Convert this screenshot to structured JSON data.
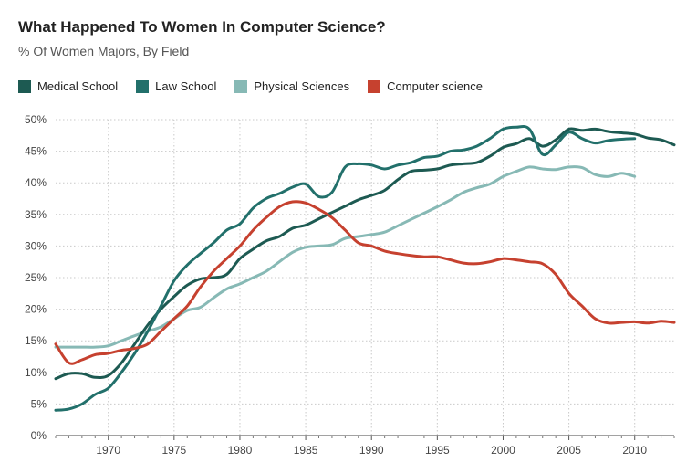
{
  "chart_data": {
    "type": "line",
    "title": "What Happened To Women In Computer Science?",
    "subtitle": "% Of Women Majors, By Field",
    "xlim": [
      1966,
      2013
    ],
    "ylim": [
      0,
      50
    ],
    "x_ticks": [
      1970,
      1975,
      1980,
      1985,
      1990,
      1995,
      2000,
      2005,
      2010
    ],
    "y_ticks": [
      0,
      5,
      10,
      15,
      20,
      25,
      30,
      35,
      40,
      45,
      50
    ],
    "x_tick_labels": [
      "1970",
      "1975",
      "1980",
      "1985",
      "1990",
      "1995",
      "2000",
      "2005",
      "2010"
    ],
    "y_tick_labels": [
      "0%",
      "5%",
      "10%",
      "15%",
      "20%",
      "25%",
      "30%",
      "35%",
      "40%",
      "45%",
      "50%"
    ],
    "grid": true,
    "legend_position": "top-left",
    "series": [
      {
        "name": "Medical School",
        "color": "#1d5a52",
        "x": [
          1966,
          1967,
          1968,
          1969,
          1970,
          1971,
          1972,
          1973,
          1974,
          1975,
          1976,
          1977,
          1978,
          1979,
          1980,
          1981,
          1982,
          1983,
          1984,
          1985,
          1986,
          1987,
          1988,
          1989,
          1990,
          1991,
          1992,
          1993,
          1994,
          1995,
          1996,
          1997,
          1998,
          1999,
          2000,
          2001,
          2002,
          2003,
          2004,
          2005,
          2006,
          2007,
          2008,
          2009,
          2010,
          2011,
          2012,
          2013
        ],
        "values": [
          9,
          9.8,
          9.8,
          9.2,
          9.5,
          11.5,
          14.5,
          17.5,
          20,
          22,
          23.8,
          24.8,
          25,
          25.5,
          28,
          29.5,
          30.8,
          31.5,
          32.8,
          33.3,
          34.3,
          35.3,
          36.3,
          37.3,
          38,
          38.8,
          40.5,
          41.8,
          42,
          42.2,
          42.8,
          43,
          43.2,
          44.2,
          45.6,
          46.2,
          47,
          45.8,
          46.8,
          48.5,
          48.3,
          48.5,
          48.1,
          47.9,
          47.7,
          47.1,
          46.8,
          46
        ]
      },
      {
        "name": "Law School",
        "color": "#22706b",
        "x": [
          1966,
          1967,
          1968,
          1969,
          1970,
          1971,
          1972,
          1973,
          1974,
          1975,
          1976,
          1977,
          1978,
          1979,
          1980,
          1981,
          1982,
          1983,
          1984,
          1985,
          1986,
          1987,
          1988,
          1989,
          1990,
          1991,
          1992,
          1993,
          1994,
          1995,
          1996,
          1997,
          1998,
          1999,
          2000,
          2001,
          2002,
          2003,
          2004,
          2005,
          2006,
          2007,
          2008,
          2009,
          2010
        ],
        "values": [
          4,
          4.2,
          5,
          6.5,
          7.5,
          10,
          13,
          16.5,
          20.5,
          24.5,
          27,
          28.8,
          30.5,
          32.5,
          33.5,
          36,
          37.5,
          38.3,
          39.3,
          39.8,
          37.8,
          38.5,
          42.5,
          43,
          42.8,
          42.2,
          42.8,
          43.2,
          44,
          44.2,
          45,
          45.2,
          45.8,
          47,
          48.5,
          48.8,
          48.5,
          44.5,
          46,
          48,
          47,
          46.3,
          46.7,
          46.9,
          47
        ]
      },
      {
        "name": "Physical Sciences",
        "color": "#87b9b5",
        "x": [
          1966,
          1967,
          1968,
          1969,
          1970,
          1971,
          1972,
          1973,
          1974,
          1975,
          1976,
          1977,
          1978,
          1979,
          1980,
          1981,
          1982,
          1983,
          1984,
          1985,
          1986,
          1987,
          1988,
          1989,
          1990,
          1991,
          1992,
          1993,
          1994,
          1995,
          1996,
          1997,
          1998,
          1999,
          2000,
          2001,
          2002,
          2003,
          2004,
          2005,
          2006,
          2007,
          2008,
          2009,
          2010
        ],
        "values": [
          14,
          14,
          14,
          14,
          14.2,
          15,
          15.8,
          16.5,
          17.2,
          18.5,
          19.8,
          20.3,
          21.8,
          23.2,
          24,
          25,
          26,
          27.5,
          29,
          29.8,
          30,
          30.2,
          31.2,
          31.5,
          31.8,
          32.2,
          33.2,
          34.2,
          35.2,
          36.2,
          37.3,
          38.5,
          39.2,
          39.8,
          41,
          41.8,
          42.5,
          42.2,
          42.1,
          42.5,
          42.4,
          41.3,
          41,
          41.5,
          41
        ]
      },
      {
        "name": "Computer science",
        "color": "#c6412f",
        "x": [
          1966,
          1967,
          1968,
          1969,
          1970,
          1971,
          1972,
          1973,
          1974,
          1975,
          1976,
          1977,
          1978,
          1979,
          1980,
          1981,
          1982,
          1983,
          1984,
          1985,
          1986,
          1987,
          1988,
          1989,
          1990,
          1991,
          1992,
          1993,
          1994,
          1995,
          1996,
          1997,
          1998,
          1999,
          2000,
          2001,
          2002,
          2003,
          2004,
          2005,
          2006,
          2007,
          2008,
          2009,
          2010,
          2011,
          2012,
          2013
        ],
        "values": [
          14.5,
          11.5,
          12,
          12.8,
          13,
          13.5,
          13.8,
          14.5,
          16.5,
          18.5,
          20.5,
          23.5,
          26,
          28,
          30,
          32.5,
          34.5,
          36.2,
          37,
          36.8,
          35.8,
          34.5,
          32.5,
          30.5,
          30,
          29.2,
          28.8,
          28.5,
          28.3,
          28.3,
          27.8,
          27.3,
          27.2,
          27.5,
          28,
          27.8,
          27.5,
          27.2,
          25.5,
          22.5,
          20.5,
          18.5,
          17.8,
          17.9,
          18,
          17.8,
          18.1,
          17.9
        ]
      }
    ]
  }
}
